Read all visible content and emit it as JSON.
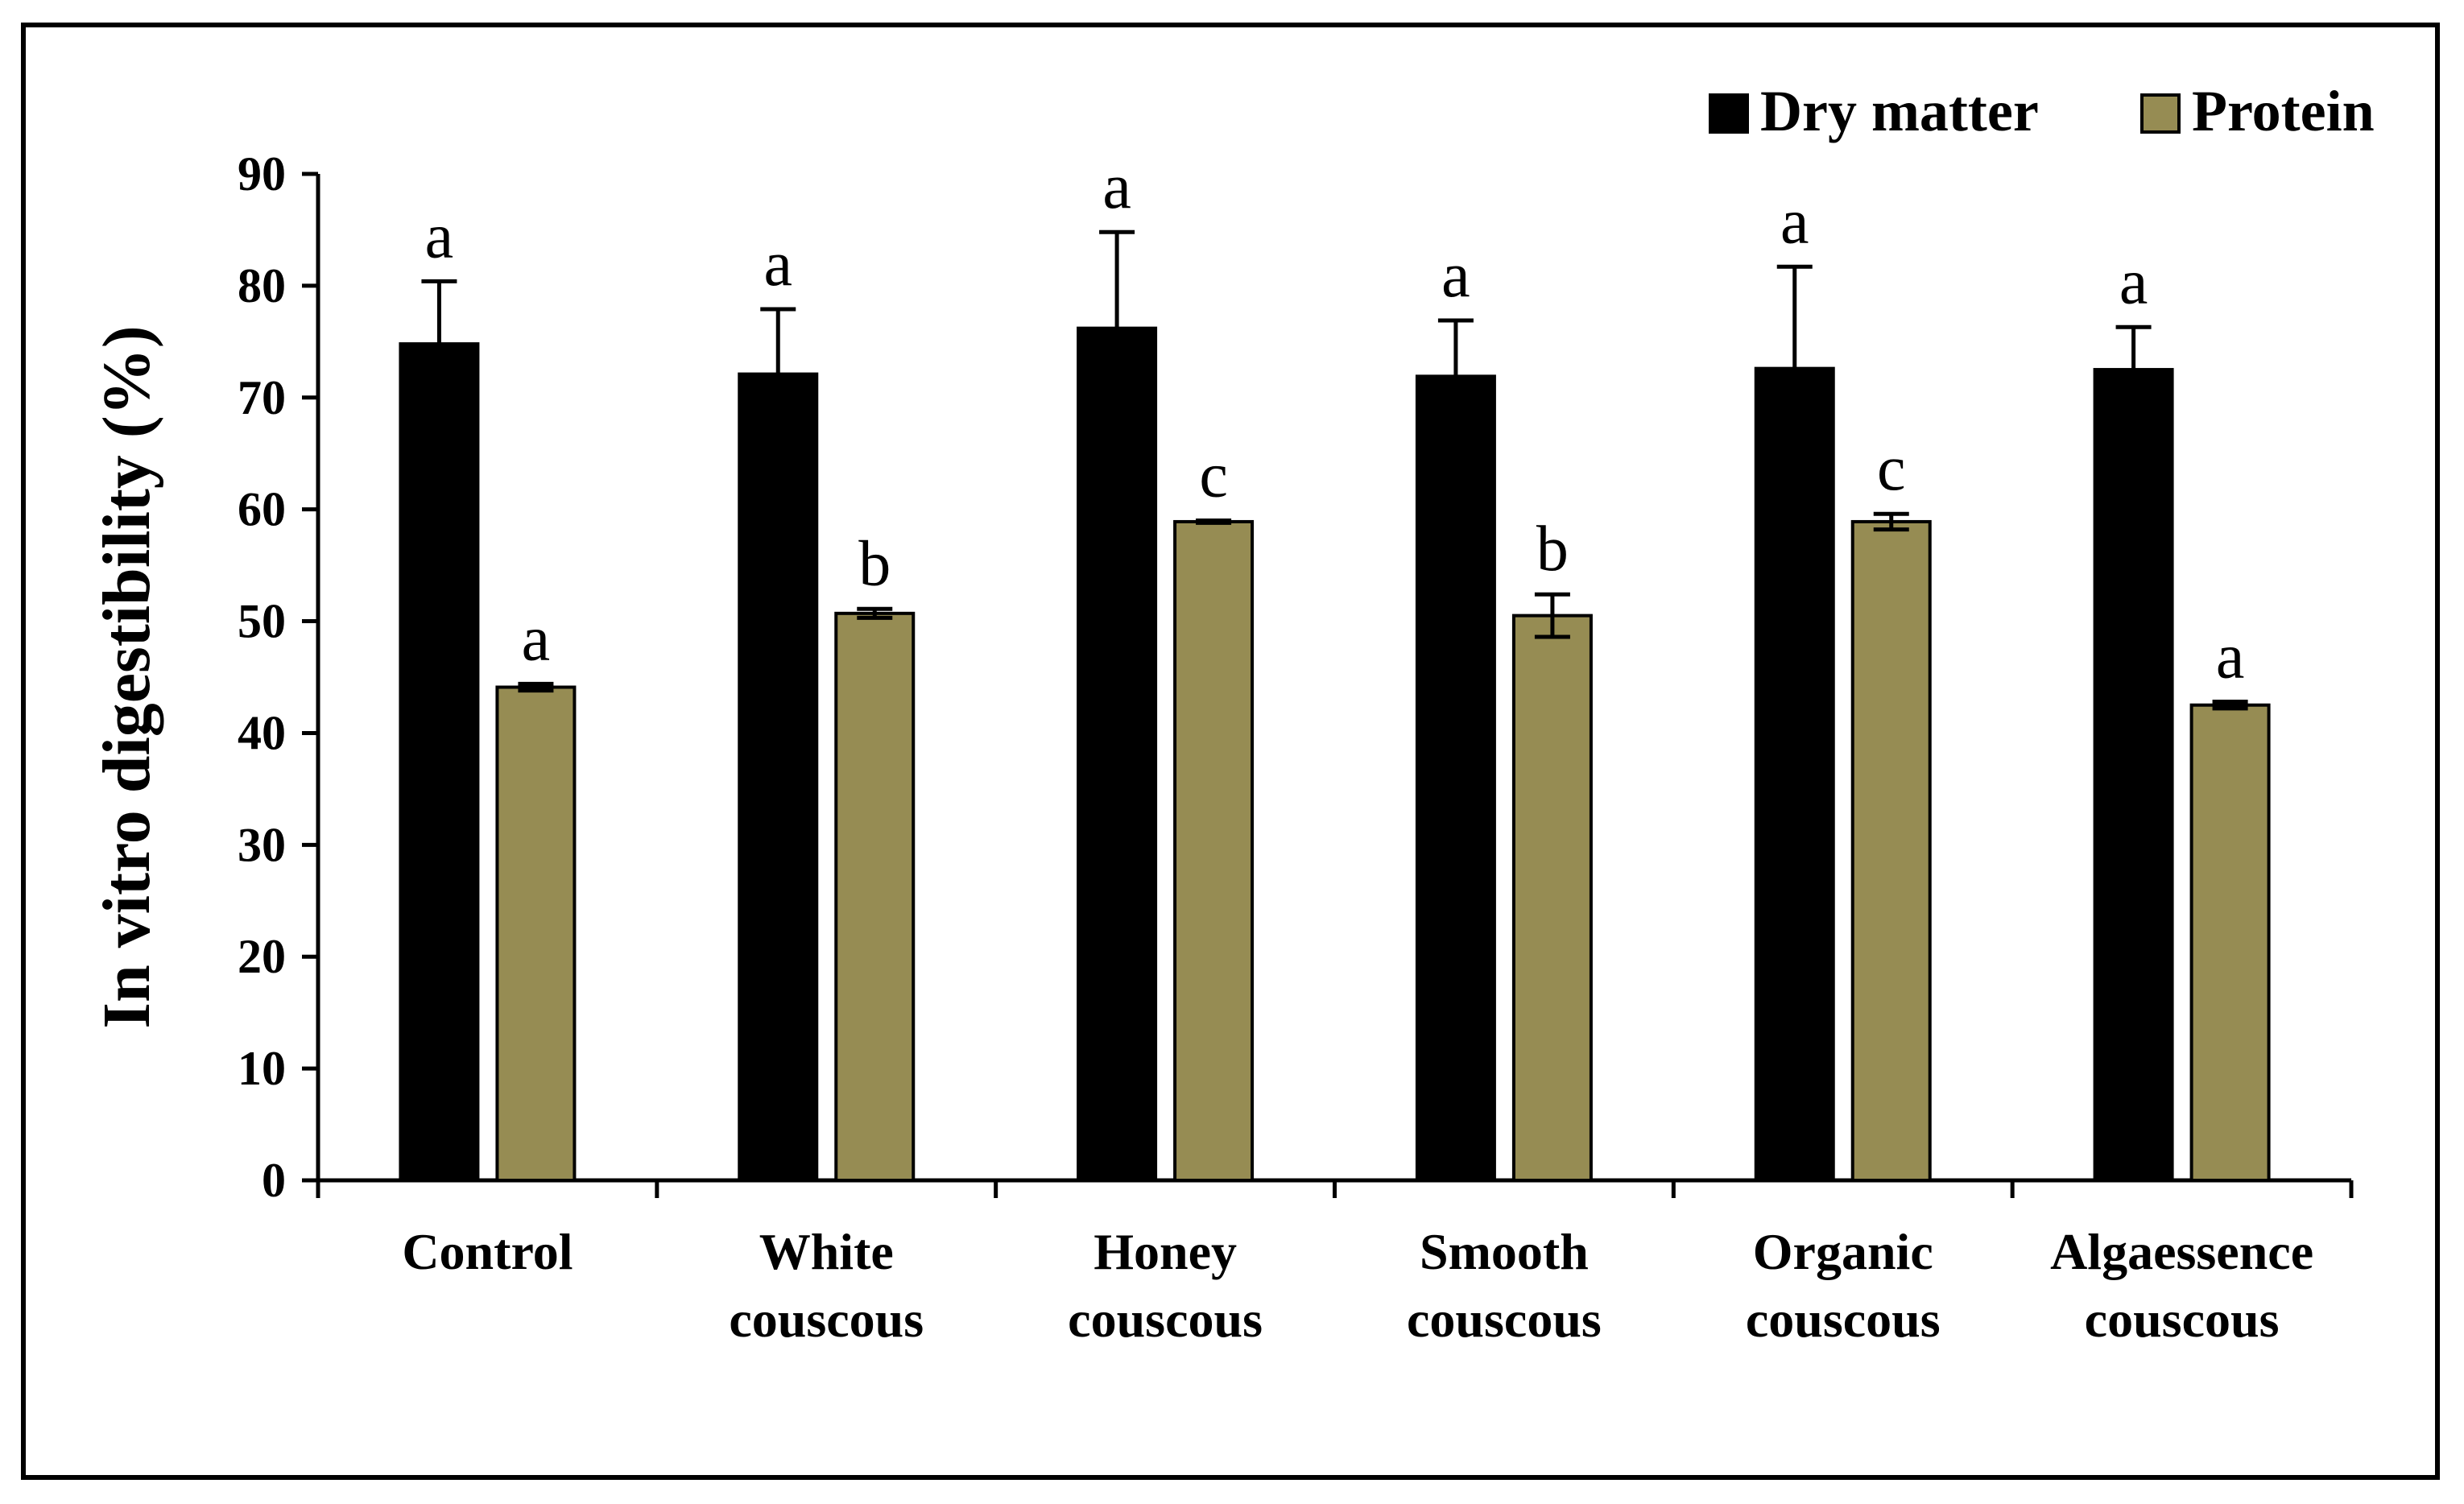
{
  "chart_data": {
    "type": "bar",
    "title": "",
    "xlabel": "",
    "ylabel": "In vitro digestibility (%)",
    "ylim": [
      0,
      90
    ],
    "yticks": [
      0,
      10,
      20,
      30,
      40,
      50,
      60,
      70,
      80,
      90
    ],
    "grid": false,
    "legend_position": "top-right",
    "categories": [
      [
        "Control"
      ],
      [
        "White",
        "couscous"
      ],
      [
        "Honey",
        "couscous"
      ],
      [
        "Smooth",
        "couscous"
      ],
      [
        "Organic",
        "couscous"
      ],
      [
        "Algaessence",
        "couscous"
      ]
    ],
    "series": [
      {
        "name": "Dry matter",
        "color": "#000000",
        "values": [
          74.8,
          72.1,
          76.2,
          71.9,
          72.6,
          72.5
        ],
        "errors": [
          5.6,
          5.8,
          8.6,
          5.0,
          9.1,
          3.8
        ],
        "letters": [
          "a",
          "a",
          "a",
          "a",
          "a",
          "a"
        ]
      },
      {
        "name": "Protein",
        "color": "#968C53",
        "values": [
          44.1,
          50.7,
          58.9,
          50.5,
          58.9,
          42.5
        ],
        "errors": [
          0.3,
          0.4,
          0.1,
          1.9,
          0.7,
          0.3
        ],
        "letters": [
          "a",
          "b",
          "c",
          "b",
          "c",
          "a"
        ]
      }
    ]
  }
}
